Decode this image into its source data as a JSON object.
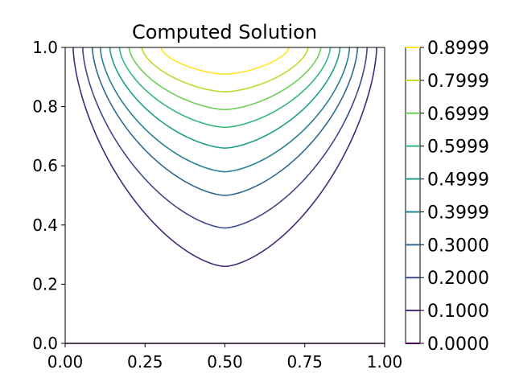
{
  "chart_data": {
    "type": "contour",
    "title": "Computed Solution",
    "xlabel": "",
    "ylabel": "",
    "xlim": [
      0.0,
      1.0
    ],
    "ylim": [
      0.0,
      1.0
    ],
    "x_ticks": [
      0.0,
      0.25,
      0.5,
      0.75,
      1.0
    ],
    "x_tick_labels": [
      "0.00",
      "0.25",
      "0.50",
      "0.75",
      "1.00"
    ],
    "y_ticks": [
      0.0,
      0.2,
      0.4,
      0.6,
      0.8,
      1.0
    ],
    "y_tick_labels": [
      "0.0",
      "0.2",
      "0.4",
      "0.6",
      "0.8",
      "1.0"
    ],
    "colorbar": {
      "levels": [
        0.0,
        0.1,
        0.2,
        0.3,
        0.3999,
        0.4999,
        0.5999,
        0.6999,
        0.7999,
        0.8999
      ],
      "labels": [
        "0.0000",
        "0.1000",
        "0.2000",
        "0.3000",
        "0.3999",
        "0.4999",
        "0.5999",
        "0.6999",
        "0.7999",
        "0.8999"
      ],
      "colormap": "viridis"
    },
    "contours": [
      {
        "level": 0.0,
        "color": "#440154",
        "min_y": 0.0,
        "wall_x": 0.0
      },
      {
        "level": 0.1,
        "color": "#482878",
        "min_y": 0.26,
        "wall_x": 0.025
      },
      {
        "level": 0.2,
        "color": "#3e4989",
        "min_y": 0.39,
        "wall_x": 0.055
      },
      {
        "level": 0.3,
        "color": "#31688e",
        "min_y": 0.5,
        "wall_x": 0.085
      },
      {
        "level": 0.3999,
        "color": "#26828e",
        "min_y": 0.58,
        "wall_x": 0.11
      },
      {
        "level": 0.4999,
        "color": "#1f9e89",
        "min_y": 0.66,
        "wall_x": 0.14
      },
      {
        "level": 0.5999,
        "color": "#35b779",
        "min_y": 0.73,
        "wall_x": 0.17
      },
      {
        "level": 0.6999,
        "color": "#6ece58",
        "min_y": 0.79,
        "wall_x": 0.2
      },
      {
        "level": 0.7999,
        "color": "#b5de2b",
        "min_y": 0.85,
        "wall_x": 0.24
      },
      {
        "level": 0.8999,
        "color": "#fde725",
        "min_y": 0.91,
        "wall_x": 0.3
      }
    ]
  }
}
